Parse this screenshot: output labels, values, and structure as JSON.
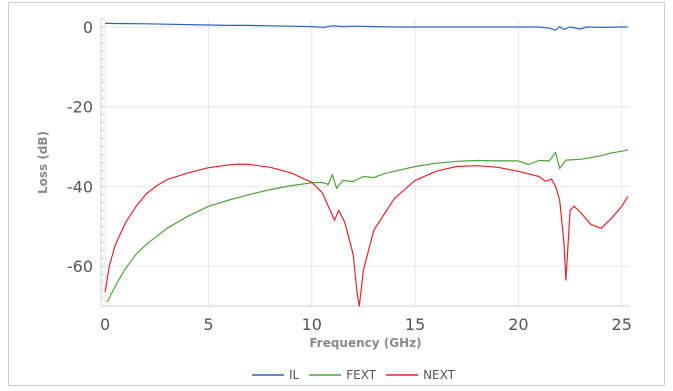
{
  "chart_data": {
    "type": "line",
    "xlabel": "Frequency (GHz)",
    "ylabel": "Loss (dB)",
    "xlim": [
      -0.2,
      25.4
    ],
    "ylim": [
      -70,
      2
    ],
    "xticks": [
      0,
      5,
      10,
      15,
      20,
      25
    ],
    "yticks": [
      0,
      -20,
      -40,
      -60
    ],
    "grid": true,
    "legend_position": "bottom-center",
    "series": [
      {
        "name": "IL",
        "color": "#2f64b5",
        "points": [
          [
            0,
            0.9
          ],
          [
            2,
            0.8
          ],
          [
            4,
            0.6
          ],
          [
            6,
            0.4
          ],
          [
            7,
            0.4
          ],
          [
            8,
            0.3
          ],
          [
            9,
            0.2
          ],
          [
            10,
            0.1
          ],
          [
            10.6,
            -0.1
          ],
          [
            11,
            0.3
          ],
          [
            11.5,
            0.1
          ],
          [
            12,
            0.2
          ],
          [
            13,
            0.1
          ],
          [
            14,
            0.0
          ],
          [
            15,
            0.0
          ],
          [
            16,
            0.0
          ],
          [
            17,
            0.0
          ],
          [
            18,
            0.0
          ],
          [
            19,
            0.0
          ],
          [
            20,
            0.0
          ],
          [
            21,
            0.0
          ],
          [
            21.5,
            -0.3
          ],
          [
            21.8,
            -0.8
          ],
          [
            22,
            0.1
          ],
          [
            22.2,
            -0.6
          ],
          [
            22.5,
            0.0
          ],
          [
            23,
            -0.5
          ],
          [
            23.3,
            0.0
          ],
          [
            24,
            -0.1
          ],
          [
            25,
            0.0
          ],
          [
            25.3,
            0.0
          ]
        ]
      },
      {
        "name": "FEXT",
        "color": "#4ea23a",
        "points": [
          [
            0.1,
            -69
          ],
          [
            0.3,
            -67
          ],
          [
            0.6,
            -64
          ],
          [
            1,
            -60.5
          ],
          [
            1.5,
            -57
          ],
          [
            2,
            -54.5
          ],
          [
            3,
            -50.5
          ],
          [
            4,
            -47.5
          ],
          [
            5,
            -45
          ],
          [
            6,
            -43.4
          ],
          [
            7,
            -42
          ],
          [
            8,
            -40.8
          ],
          [
            9,
            -39.8
          ],
          [
            10,
            -39.1
          ],
          [
            10.5,
            -39
          ],
          [
            10.8,
            -39.5
          ],
          [
            11,
            -37
          ],
          [
            11.2,
            -40.5
          ],
          [
            11.5,
            -38.5
          ],
          [
            12,
            -38.8
          ],
          [
            12.5,
            -37.5
          ],
          [
            13,
            -37.8
          ],
          [
            13.5,
            -36.8
          ],
          [
            14,
            -36.2
          ],
          [
            15,
            -35
          ],
          [
            16,
            -34.2
          ],
          [
            17,
            -33.7
          ],
          [
            18,
            -33.5
          ],
          [
            19,
            -33.6
          ],
          [
            20,
            -33.6
          ],
          [
            20.5,
            -34.5
          ],
          [
            21,
            -33.5
          ],
          [
            21.5,
            -33.6
          ],
          [
            21.8,
            -31.5
          ],
          [
            22,
            -35.5
          ],
          [
            22.3,
            -33.4
          ],
          [
            23,
            -33.2
          ],
          [
            23.5,
            -32.8
          ],
          [
            24,
            -32.3
          ],
          [
            24.5,
            -31.6
          ],
          [
            25,
            -31.2
          ],
          [
            25.3,
            -30.8
          ]
        ]
      },
      {
        "name": "NEXT",
        "color": "#e3262d",
        "points": [
          [
            0,
            -66.5
          ],
          [
            0.2,
            -60
          ],
          [
            0.5,
            -54.5
          ],
          [
            1,
            -49
          ],
          [
            1.5,
            -45
          ],
          [
            2,
            -41.8
          ],
          [
            2.5,
            -39.8
          ],
          [
            3,
            -38.3
          ],
          [
            4,
            -36.6
          ],
          [
            5,
            -35.3
          ],
          [
            6,
            -34.6
          ],
          [
            6.5,
            -34.4
          ],
          [
            7,
            -34.5
          ],
          [
            8,
            -35.2
          ],
          [
            9,
            -36.6
          ],
          [
            10,
            -39
          ],
          [
            10.5,
            -41.5
          ],
          [
            10.8,
            -45
          ],
          [
            11.1,
            -48.5
          ],
          [
            11.3,
            -46
          ],
          [
            11.6,
            -49
          ],
          [
            12,
            -57
          ],
          [
            12.2,
            -67
          ],
          [
            12.3,
            -70
          ],
          [
            12.5,
            -61
          ],
          [
            13,
            -51
          ],
          [
            14,
            -43
          ],
          [
            15,
            -38.5
          ],
          [
            16,
            -36.2
          ],
          [
            17,
            -35
          ],
          [
            18,
            -34.8
          ],
          [
            19,
            -35.2
          ],
          [
            20,
            -36.2
          ],
          [
            21,
            -37.5
          ],
          [
            21.3,
            -38.7
          ],
          [
            21.6,
            -38.2
          ],
          [
            21.8,
            -40
          ],
          [
            22,
            -43.5
          ],
          [
            22.2,
            -54
          ],
          [
            22.3,
            -63.5
          ],
          [
            22.5,
            -46
          ],
          [
            22.7,
            -45
          ],
          [
            23,
            -46.5
          ],
          [
            23.5,
            -49.5
          ],
          [
            24,
            -50.5
          ],
          [
            24.5,
            -48
          ],
          [
            25,
            -45
          ],
          [
            25.3,
            -42.5
          ]
        ]
      }
    ]
  }
}
